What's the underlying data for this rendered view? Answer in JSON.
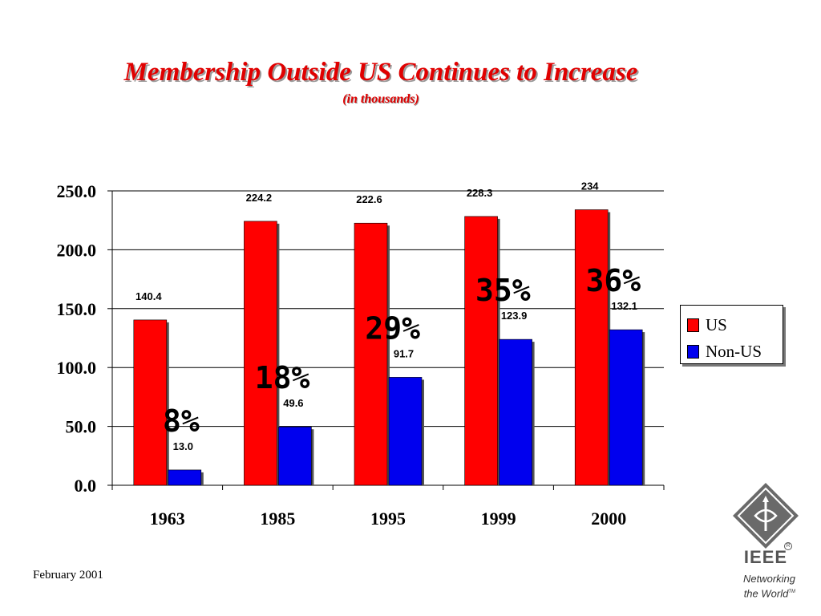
{
  "slide": {
    "title": "Membership Outside US Continues to Increase",
    "subtitle": "(in thousands)",
    "footer_date": "February 2001"
  },
  "logo": {
    "icon": "ieee-diamond-icon",
    "wordmark": "IEEE",
    "registered": "R",
    "tagline_line1": "Networking",
    "tagline_line2": "the World",
    "trademark": "TM"
  },
  "chart_data": {
    "type": "bar",
    "categories": [
      "1963",
      "1985",
      "1995",
      "1999",
      "2000"
    ],
    "series": [
      {
        "name": "US",
        "color": "#ff0000",
        "values": [
          140.4,
          224.2,
          222.6,
          228.3,
          234
        ],
        "labels": [
          "140.4",
          "224.2",
          "222.6",
          "228.3",
          "234"
        ]
      },
      {
        "name": "Non-US",
        "color": "#0000ee",
        "values": [
          13.0,
          49.6,
          91.7,
          123.9,
          132.1
        ],
        "labels": [
          "13.0",
          "49.6",
          "91.7",
          "123.9",
          "132.1"
        ]
      }
    ],
    "annotations": [
      "8%",
      "18%",
      "29%",
      "35%",
      "36%"
    ],
    "yticks": [
      "0.0",
      "50.0",
      "100.0",
      "150.0",
      "200.0",
      "250.0"
    ],
    "ylim": [
      0,
      250
    ],
    "grid": true,
    "legend": "right"
  }
}
